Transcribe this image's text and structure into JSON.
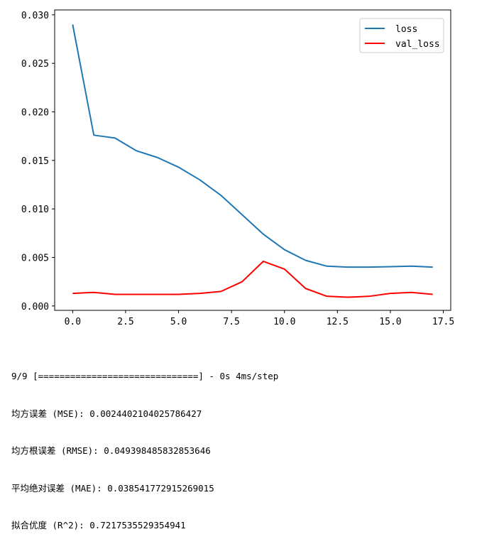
{
  "chart_data": {
    "type": "line",
    "title": "",
    "xlabel": "",
    "ylabel": "",
    "xlim": [
      -0.85,
      17.85
    ],
    "ylim": [
      -0.00045,
      0.0305
    ],
    "xticks": [
      0.0,
      2.5,
      5.0,
      7.5,
      10.0,
      12.5,
      15.0,
      17.5
    ],
    "xtick_labels": [
      "0.0",
      "2.5",
      "5.0",
      "7.5",
      "10.0",
      "12.5",
      "15.0",
      "17.5"
    ],
    "yticks": [
      0.0,
      0.005,
      0.01,
      0.015,
      0.02,
      0.025,
      0.03
    ],
    "ytick_labels": [
      "0.000",
      "0.005",
      "0.010",
      "0.015",
      "0.020",
      "0.025",
      "0.030"
    ],
    "grid": false,
    "legend_position": "top-right",
    "x": [
      0,
      1,
      2,
      3,
      4,
      5,
      6,
      7,
      8,
      9,
      10,
      11,
      12,
      13,
      14,
      15,
      16,
      17
    ],
    "series": [
      {
        "name": "loss",
        "color": "#1f77b4",
        "values": [
          0.029,
          0.0176,
          0.0173,
          0.016,
          0.0153,
          0.0143,
          0.013,
          0.0114,
          0.0094,
          0.0074,
          0.0058,
          0.0047,
          0.0041,
          0.004,
          0.004,
          0.00405,
          0.0041,
          0.004
        ]
      },
      {
        "name": "val_loss",
        "color": "#ff0000",
        "values": [
          0.0013,
          0.0014,
          0.0012,
          0.0012,
          0.0012,
          0.0012,
          0.0013,
          0.0015,
          0.0025,
          0.0046,
          0.0038,
          0.0018,
          0.001,
          0.0009,
          0.001,
          0.0013,
          0.0014,
          0.0012
        ]
      }
    ]
  },
  "console": {
    "lines": [
      "9/9 [==============================] - 0s 4ms/step",
      "均方误差 (MSE): 0.0024402104025786427",
      "均方根误差 (RMSE): 0.049398485832853646",
      "平均绝对误差 (MAE): 0.038541772915269015",
      "拟合优度 (R^2): 0.7217535529354941"
    ]
  }
}
